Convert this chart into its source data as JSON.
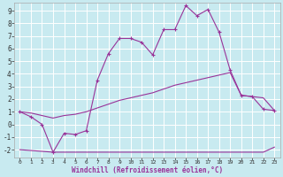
{
  "xlabel": "Windchill (Refroidissement éolien,°C)",
  "background_color": "#c8eaf0",
  "grid_color": "#ffffff",
  "line_color": "#993399",
  "xlim": [
    -0.5,
    23.5
  ],
  "ylim": [
    -2.6,
    9.6
  ],
  "xticks": [
    0,
    1,
    2,
    3,
    4,
    5,
    6,
    7,
    8,
    9,
    10,
    11,
    12,
    13,
    14,
    15,
    16,
    17,
    18,
    19,
    20,
    21,
    22,
    23
  ],
  "yticks": [
    -2,
    -1,
    0,
    1,
    2,
    3,
    4,
    5,
    6,
    7,
    8,
    9
  ],
  "series1_x": [
    0,
    1,
    2,
    3,
    4,
    5,
    6,
    7,
    8,
    9,
    10,
    11,
    12,
    13,
    14,
    15,
    16,
    17,
    18,
    19,
    20,
    21,
    22,
    23
  ],
  "series1_y": [
    1.0,
    0.6,
    0.0,
    -2.2,
    -0.7,
    -0.8,
    -0.5,
    3.5,
    5.6,
    6.8,
    6.8,
    6.5,
    5.5,
    7.5,
    7.5,
    9.4,
    8.6,
    9.1,
    7.3,
    4.3,
    2.3,
    2.2,
    1.2,
    1.1
  ],
  "series2_x": [
    0,
    3,
    9,
    15,
    19,
    22,
    23
  ],
  "series2_y": [
    -2.0,
    -2.2,
    -2.2,
    -2.2,
    -2.2,
    -2.2,
    -1.8
  ],
  "series3_x": [
    0,
    1,
    2,
    3,
    4,
    5,
    6,
    7,
    8,
    9,
    10,
    11,
    12,
    13,
    14,
    15,
    16,
    17,
    18,
    19,
    20,
    21,
    22,
    23
  ],
  "series3_y": [
    1.0,
    0.9,
    0.7,
    0.5,
    0.7,
    0.8,
    1.0,
    1.3,
    1.6,
    1.9,
    2.1,
    2.3,
    2.5,
    2.8,
    3.1,
    3.3,
    3.5,
    3.7,
    3.9,
    4.1,
    2.3,
    2.2,
    2.1,
    1.1
  ],
  "markersize": 2.0
}
